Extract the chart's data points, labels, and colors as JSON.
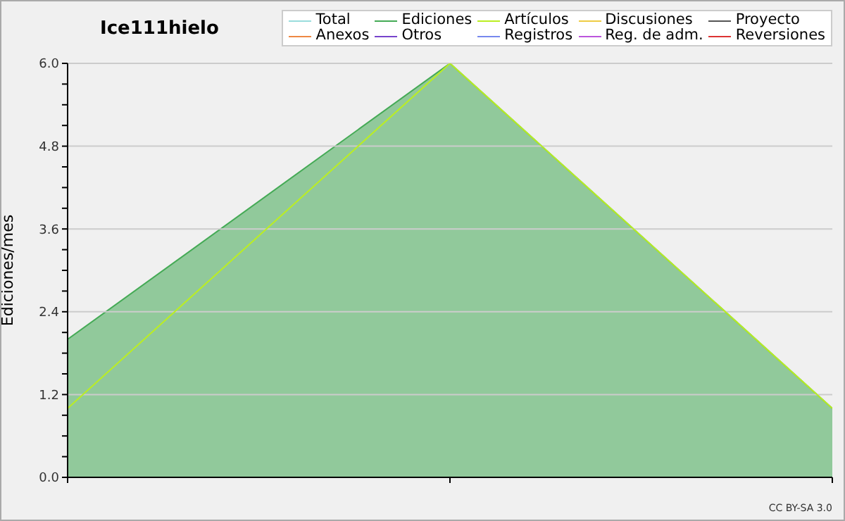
{
  "chart_data": {
    "type": "line",
    "title": "Ice111hielo",
    "ylabel": "Ediciones/mes",
    "categories": [
      null,
      null,
      null
    ],
    "series": [
      {
        "name": "Total",
        "color": "#99dddd",
        "values": [
          null,
          null,
          null
        ]
      },
      {
        "name": "Ediciones",
        "color": "#44aa55",
        "type": "area",
        "values": [
          2,
          6,
          1
        ]
      },
      {
        "name": "Artículos",
        "color": "#bbee22",
        "values": [
          1,
          6,
          1
        ]
      },
      {
        "name": "Discusiones",
        "color": "#eecc44",
        "values": [
          null,
          null,
          null
        ]
      },
      {
        "name": "Proyecto",
        "color": "#555555",
        "values": [
          null,
          null,
          null
        ]
      },
      {
        "name": "Anexos",
        "color": "#ee8844",
        "values": [
          null,
          null,
          null
        ]
      },
      {
        "name": "Otros",
        "color": "#7744cc",
        "values": [
          null,
          null,
          null
        ]
      },
      {
        "name": "Registros",
        "color": "#7788ee",
        "values": [
          null,
          null,
          null
        ]
      },
      {
        "name": "Reg. de adm.",
        "color": "#bb55dd",
        "values": [
          null,
          null,
          null
        ]
      },
      {
        "name": "Reversiones",
        "color": "#dd3333",
        "values": [
          null,
          null,
          null
        ]
      }
    ],
    "ylim": [
      0,
      6
    ],
    "yticks": [
      {
        "value": 0,
        "label": "0.0"
      },
      {
        "value": 0.3,
        "label": null
      },
      {
        "value": 0.6,
        "label": null
      },
      {
        "value": 0.9,
        "label": null
      },
      {
        "value": 1.2,
        "label": "1.2"
      },
      {
        "value": 1.5,
        "label": null
      },
      {
        "value": 1.8,
        "label": null
      },
      {
        "value": 2.1,
        "label": null
      },
      {
        "value": 2.4,
        "label": "2.4"
      },
      {
        "value": 2.7,
        "label": null
      },
      {
        "value": 3,
        "label": null
      },
      {
        "value": 3.3,
        "label": null
      },
      {
        "value": 3.6,
        "label": "3.6"
      },
      {
        "value": 3.9,
        "label": null
      },
      {
        "value": 4.2,
        "label": null
      },
      {
        "value": 4.5,
        "label": null
      },
      {
        "value": 4.8,
        "label": "4.8"
      },
      {
        "value": 5.1,
        "label": null
      },
      {
        "value": 5.4,
        "label": null
      },
      {
        "value": 5.7,
        "label": null
      },
      {
        "value": 6,
        "label": "6.0"
      }
    ],
    "grid": "y",
    "legend": "top right",
    "marker": "none",
    "line_style": "solid",
    "annotations": [
      "CC BY-SA 3.0"
    ]
  }
}
